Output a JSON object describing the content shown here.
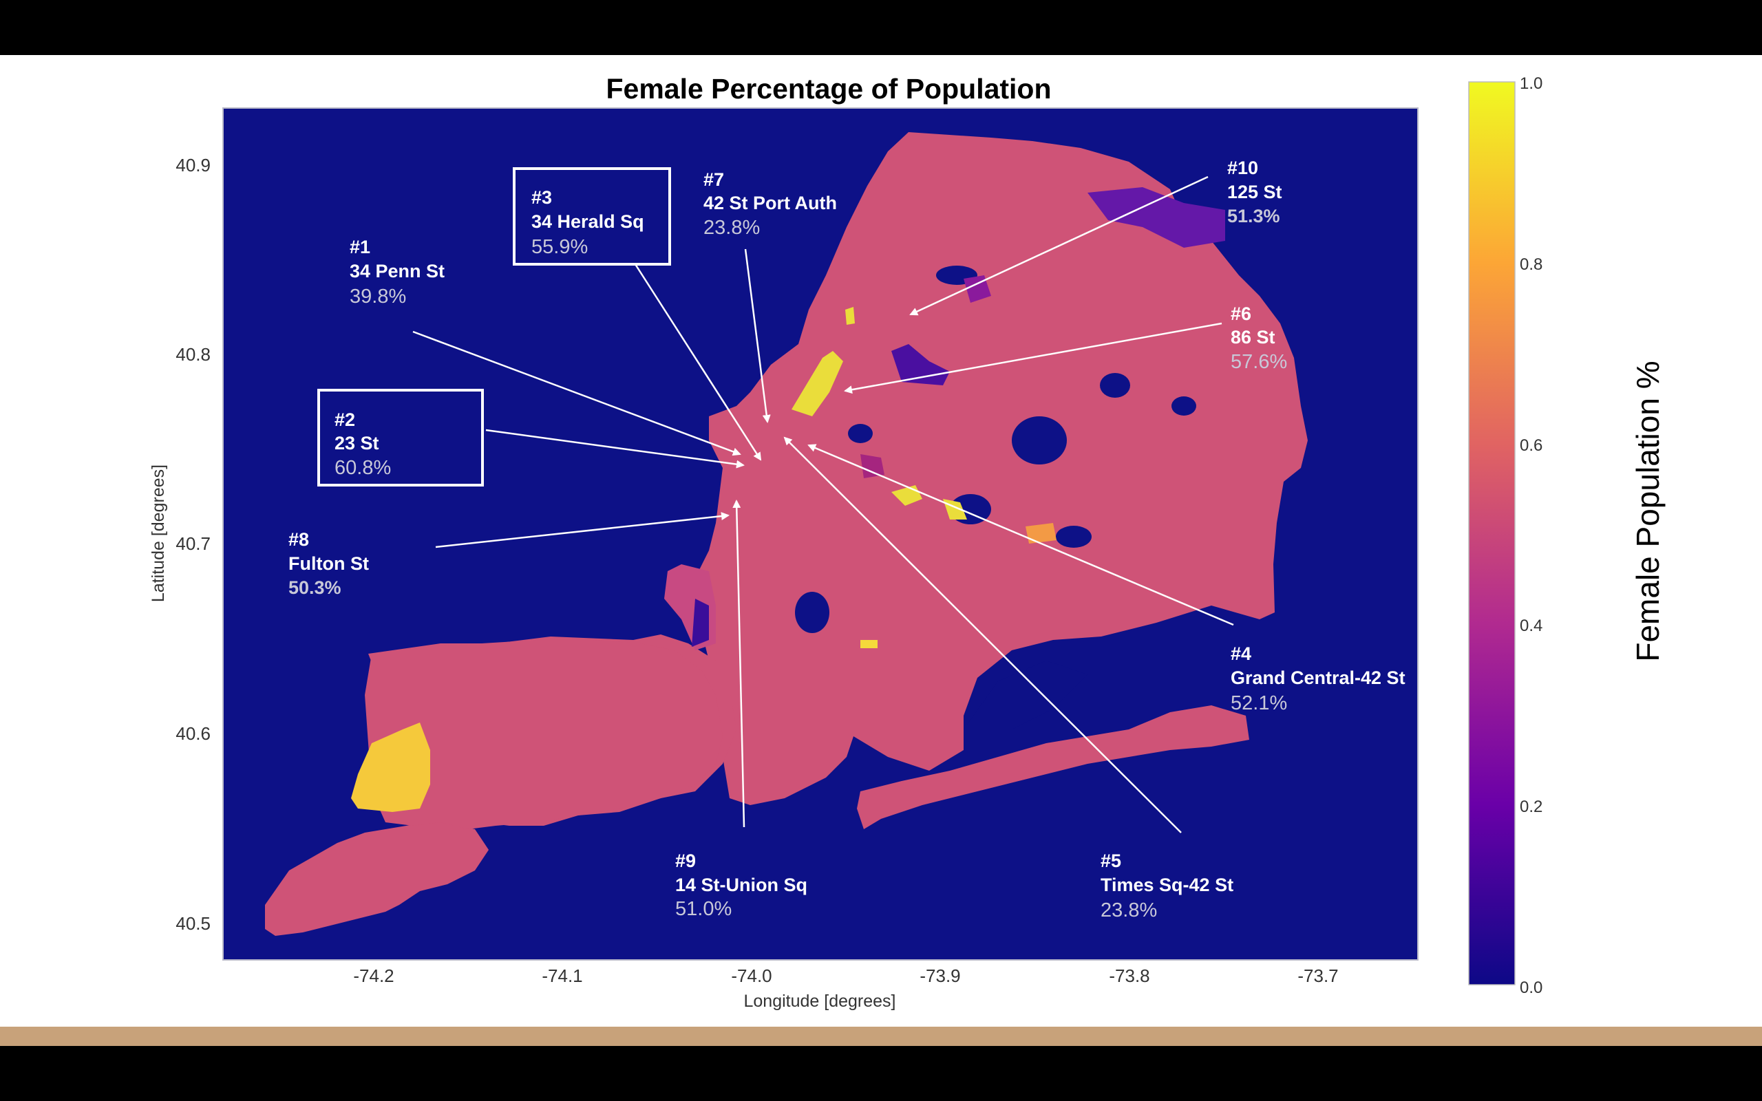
{
  "title": "Female Percentage of Population",
  "axes": {
    "xlabel": "Longitude [degrees]",
    "ylabel": "Latitude [degrees]",
    "xticks": [
      "-74.2",
      "-74.1",
      "-74.0",
      "-73.9",
      "-73.8",
      "-73.7"
    ],
    "yticks": [
      "40.9",
      "40.8",
      "40.7",
      "40.6",
      "40.5"
    ],
    "xlim": [
      -74.27,
      -73.64
    ],
    "ylim": [
      40.48,
      40.93
    ]
  },
  "colorbar": {
    "label": "Female Population %",
    "ticks": [
      "1.0",
      "0.8",
      "0.6",
      "0.4",
      "0.2",
      "0.0"
    ],
    "range": [
      0,
      1
    ],
    "colors": [
      "#0d0887",
      "#6a00a8",
      "#b12a90",
      "#e16462",
      "#fca636",
      "#f0f921"
    ]
  },
  "map_colors": {
    "water": "#0d1187",
    "land": "#cf5377",
    "high": "#f5d93b",
    "low": "#5a14a0"
  },
  "stations": [
    {
      "rank": "#1",
      "name": "34 Penn St",
      "pct": "39.8%",
      "lon": -73.993,
      "lat": 40.75
    },
    {
      "rank": "#2",
      "name": "23 St",
      "pct": "60.8%",
      "lon": -73.993,
      "lat": 40.743
    },
    {
      "rank": "#3",
      "name": "34 Herald Sq",
      "pct": "55.9%",
      "lon": -73.988,
      "lat": 40.749
    },
    {
      "rank": "#4",
      "name": "Grand Central-42 St",
      "pct": "52.1%",
      "lon": -73.977,
      "lat": 40.752
    },
    {
      "rank": "#5",
      "name": "Times Sq-42 St",
      "pct": "23.8%",
      "lon": -73.987,
      "lat": 40.756
    },
    {
      "rank": "#6",
      "name": "86 St",
      "pct": "57.6%",
      "lon": -73.954,
      "lat": 40.778
    },
    {
      "rank": "#7",
      "name": "42 St Port Auth",
      "pct": "23.8%",
      "lon": -73.99,
      "lat": 40.757
    },
    {
      "rank": "#8",
      "name": "Fulton St",
      "pct": "50.3%",
      "lon": -74.008,
      "lat": 40.71
    },
    {
      "rank": "#9",
      "name": "14 St-Union Sq",
      "pct": "51.0%",
      "lon": -73.99,
      "lat": 40.735
    },
    {
      "rank": "#10",
      "name": "125 St",
      "pct": "51.3%",
      "lon": -73.938,
      "lat": 40.804
    }
  ]
}
